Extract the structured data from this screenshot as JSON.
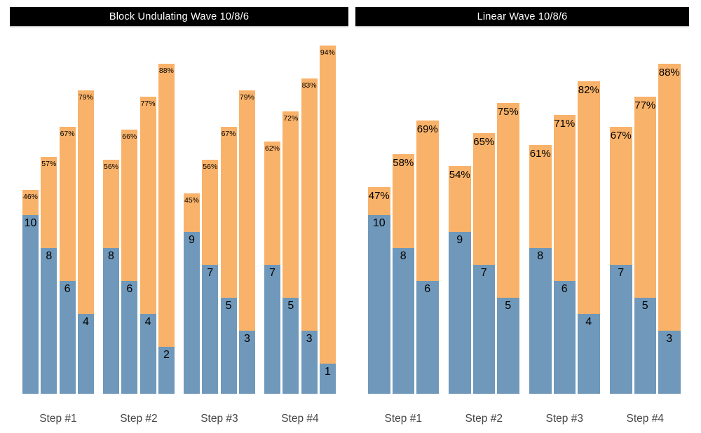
{
  "colors": {
    "bar_blue": "#6F98BA",
    "bar_orange": "#F9B269",
    "title_bg": "#000000",
    "title_fg": "#ffffff",
    "step_label": "#454545",
    "value_label": "#000000",
    "background": "#ffffff"
  },
  "chart_data": [
    {
      "type": "bar",
      "title": "Block Undulating Wave 10/8/6",
      "categories": [
        "Step #1",
        "Step #2",
        "Step #3",
        "Step #4"
      ],
      "units": {
        "blue_segment": "reps",
        "orange_segment": "intensity_percent"
      },
      "layout_hints": {
        "grid": false,
        "axes_visible": false,
        "value_labels": "inside-top",
        "legend": "none"
      },
      "groups": [
        {
          "step": "Step #1",
          "bars": [
            {
              "reps": 10,
              "pct": 46,
              "pct_label": "46%"
            },
            {
              "reps": 8,
              "pct": 57,
              "pct_label": "57%"
            },
            {
              "reps": 6,
              "pct": 67,
              "pct_label": "67%"
            },
            {
              "reps": 4,
              "pct": 79,
              "pct_label": "79%"
            }
          ]
        },
        {
          "step": "Step #2",
          "bars": [
            {
              "reps": 8,
              "pct": 56,
              "pct_label": "56%"
            },
            {
              "reps": 6,
              "pct": 66,
              "pct_label": "66%"
            },
            {
              "reps": 4,
              "pct": 77,
              "pct_label": "77%"
            },
            {
              "reps": 2,
              "pct": 88,
              "pct_label": "88%"
            }
          ]
        },
        {
          "step": "Step #3",
          "bars": [
            {
              "reps": 9,
              "pct": 45,
              "pct_label": "45%"
            },
            {
              "reps": 7,
              "pct": 56,
              "pct_label": "56%"
            },
            {
              "reps": 5,
              "pct": 67,
              "pct_label": "67%"
            },
            {
              "reps": 3,
              "pct": 79,
              "pct_label": "79%"
            }
          ]
        },
        {
          "step": "Step #4",
          "bars": [
            {
              "reps": 7,
              "pct": 62,
              "pct_label": "62%"
            },
            {
              "reps": 5,
              "pct": 72,
              "pct_label": "72%"
            },
            {
              "reps": 3,
              "pct": 83,
              "pct_label": "83%"
            },
            {
              "reps": 1,
              "pct": 94,
              "pct_label": "94%"
            }
          ]
        }
      ]
    },
    {
      "type": "bar",
      "title": "Linear Wave 10/8/6",
      "categories": [
        "Step #1",
        "Step #2",
        "Step #3",
        "Step #4"
      ],
      "units": {
        "blue_segment": "reps",
        "orange_segment": "intensity_percent"
      },
      "layout_hints": {
        "grid": false,
        "axes_visible": false,
        "value_labels": "inside-top",
        "legend": "none"
      },
      "groups": [
        {
          "step": "Step #1",
          "bars": [
            {
              "reps": 10,
              "pct": 47,
              "pct_label": "47%"
            },
            {
              "reps": 8,
              "pct": 58,
              "pct_label": "58%"
            },
            {
              "reps": 6,
              "pct": 69,
              "pct_label": "69%"
            }
          ]
        },
        {
          "step": "Step #2",
          "bars": [
            {
              "reps": 9,
              "pct": 54,
              "pct_label": "54%"
            },
            {
              "reps": 7,
              "pct": 65,
              "pct_label": "65%"
            },
            {
              "reps": 5,
              "pct": 75,
              "pct_label": "75%"
            }
          ]
        },
        {
          "step": "Step #3",
          "bars": [
            {
              "reps": 8,
              "pct": 61,
              "pct_label": "61%"
            },
            {
              "reps": 6,
              "pct": 71,
              "pct_label": "71%"
            },
            {
              "reps": 4,
              "pct": 82,
              "pct_label": "82%"
            }
          ]
        },
        {
          "step": "Step #4",
          "bars": [
            {
              "reps": 7,
              "pct": 67,
              "pct_label": "67%"
            },
            {
              "reps": 5,
              "pct": 77,
              "pct_label": "77%"
            },
            {
              "reps": 3,
              "pct": 88,
              "pct_label": "88%"
            }
          ]
        }
      ]
    }
  ]
}
